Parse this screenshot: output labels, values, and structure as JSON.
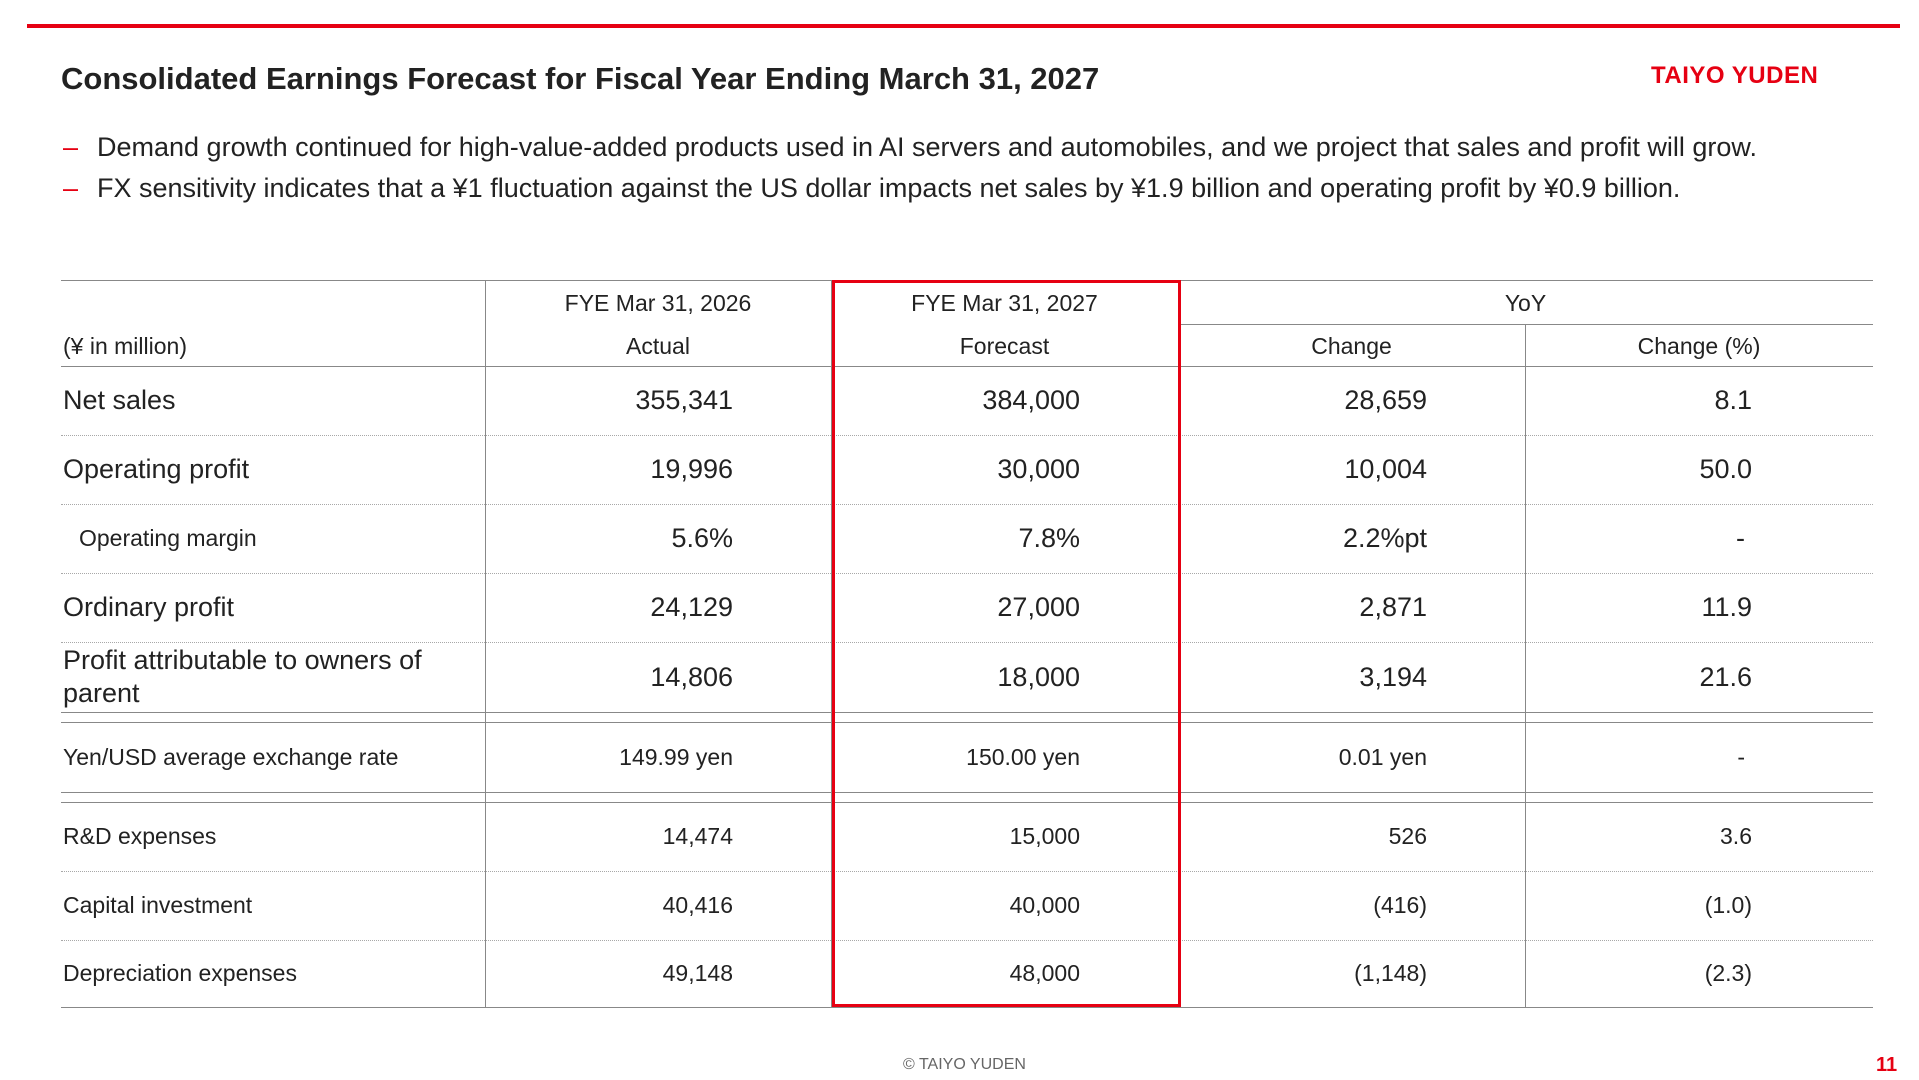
{
  "header": {
    "title": "Consolidated Earnings Forecast for Fiscal Year Ending March 31, 2027",
    "logo_text": "TAIYO YUDEN",
    "accent_color": "#e60012"
  },
  "bullets": [
    "Demand growth continued for high-value-added products used in AI servers and automobiles, and we project that sales and profit will grow.",
    "FX sensitivity indicates that a ¥1 fluctuation against the US dollar impacts net sales by ¥1.9 billion and operating profit by ¥0.9 billion."
  ],
  "bullet_marker": "–",
  "table": {
    "unit_label": "(¥ in million)",
    "col_fy2026": {
      "period": "FYE Mar 31, 2026",
      "type": "Actual"
    },
    "col_fy2027": {
      "period": "FYE Mar 31, 2027",
      "type": "Forecast"
    },
    "yoy": {
      "label": "YoY",
      "change": "Change",
      "change_pct": "Change (%)"
    },
    "rows": [
      {
        "label": "Net sales",
        "actual": "355,341",
        "forecast": "384,000",
        "change": "28,659",
        "change_pct": "8.1"
      },
      {
        "label": "Operating profit",
        "actual": "19,996",
        "forecast": "30,000",
        "change": "10,004",
        "change_pct": "50.0"
      },
      {
        "label": "Operating margin",
        "actual": "5.6%",
        "forecast": "7.8%",
        "change": "2.2%pt",
        "change_pct": "-"
      },
      {
        "label": "Ordinary profit",
        "actual": "24,129",
        "forecast": "27,000",
        "change": "2,871",
        "change_pct": "11.9"
      },
      {
        "label": "Profit attributable to owners of parent",
        "actual": "14,806",
        "forecast": "18,000",
        "change": "3,194",
        "change_pct": "21.6"
      },
      {
        "label": "Yen/USD average exchange rate",
        "actual": "149.99 yen",
        "forecast": "150.00 yen",
        "change": "0.01 yen",
        "change_pct": "-"
      },
      {
        "label": "R&D expenses",
        "actual": "14,474",
        "forecast": "15,000",
        "change": "526",
        "change_pct": "3.6"
      },
      {
        "label": "Capital investment",
        "actual": "40,416",
        "forecast": "40,000",
        "change": "(416)",
        "change_pct": "(1.0)"
      },
      {
        "label": "Depreciation expenses",
        "actual": "49,148",
        "forecast": "48,000",
        "change": "(1,148)",
        "change_pct": "(2.3)"
      }
    ]
  },
  "footer": {
    "copyright": "© TAIYO YUDEN",
    "page_number": "11"
  }
}
